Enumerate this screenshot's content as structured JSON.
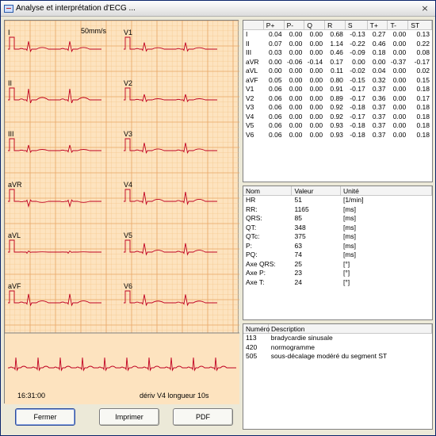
{
  "window": {
    "title": "Analyse et interprétation d'ECG ...",
    "close_glyph": "×"
  },
  "ecg": {
    "speed": "50mm/s",
    "leads_left": [
      "I",
      "II",
      "III",
      "aVR",
      "aVL",
      "aVF"
    ],
    "leads_right": [
      "V1",
      "V2",
      "V3",
      "V4",
      "V5",
      "V6"
    ],
    "rhythm_time": "16:31:00",
    "rhythm_label": "dériv V4  longueur 10s"
  },
  "params": {
    "headers": [
      "",
      "P+",
      "P-",
      "Q",
      "R",
      "S",
      "T+",
      "T-",
      "ST"
    ],
    "rows": [
      [
        "I",
        "0.04",
        "0.00",
        "0.00",
        "0.68",
        "-0.13",
        "0.27",
        "0.00",
        "0.13"
      ],
      [
        "II",
        "0.07",
        "0.00",
        "0.00",
        "1.14",
        "-0.22",
        "0.46",
        "0.00",
        "0.22"
      ],
      [
        "III",
        "0.03",
        "0.00",
        "0.00",
        "0.46",
        "-0.09",
        "0.18",
        "0.00",
        "0.08"
      ],
      [
        "aVR",
        "0.00",
        "-0.06",
        "-0.14",
        "0.17",
        "0.00",
        "0.00",
        "-0.37",
        "-0.17"
      ],
      [
        "aVL",
        "0.00",
        "0.00",
        "0.00",
        "0.11",
        "-0.02",
        "0.04",
        "0.00",
        "0.02"
      ],
      [
        "aVF",
        "0.05",
        "0.00",
        "0.00",
        "0.80",
        "-0.15",
        "0.32",
        "0.00",
        "0.15"
      ],
      [
        "V1",
        "0.06",
        "0.00",
        "0.00",
        "0.91",
        "-0.17",
        "0.37",
        "0.00",
        "0.18"
      ],
      [
        "V2",
        "0.06",
        "0.00",
        "0.00",
        "0.89",
        "-0.17",
        "0.36",
        "0.00",
        "0.17"
      ],
      [
        "V3",
        "0.06",
        "0.00",
        "0.00",
        "0.92",
        "-0.18",
        "0.37",
        "0.00",
        "0.18"
      ],
      [
        "V4",
        "0.06",
        "0.00",
        "0.00",
        "0.92",
        "-0.17",
        "0.37",
        "0.00",
        "0.18"
      ],
      [
        "V5",
        "0.06",
        "0.00",
        "0.00",
        "0.93",
        "-0.18",
        "0.37",
        "0.00",
        "0.18"
      ],
      [
        "V6",
        "0.06",
        "0.00",
        "0.00",
        "0.93",
        "-0.18",
        "0.37",
        "0.00",
        "0.18"
      ]
    ]
  },
  "measures": {
    "headers": [
      "Nom",
      "Valeur",
      "Unité"
    ],
    "rows": [
      [
        "HR",
        "51",
        "[1/min]"
      ],
      [
        "RR:",
        "1165",
        "[ms]"
      ],
      [
        "QRS:",
        "85",
        "[ms]"
      ],
      [
        "QT:",
        "348",
        "[ms]"
      ],
      [
        "QTc:",
        "375",
        "[ms]"
      ],
      [
        "P:",
        "63",
        "[ms]"
      ],
      [
        "PQ:",
        "74",
        "[ms]"
      ],
      [
        "Axe QRS:",
        "25",
        "[°]"
      ],
      [
        "Axe P:",
        "23",
        "[°]"
      ],
      [
        "Axe T:",
        "24",
        "[°]"
      ]
    ]
  },
  "diagnosis": {
    "headers": [
      "Numéro",
      "Description"
    ],
    "rows": [
      [
        "113",
        "bradycardie sinusale"
      ],
      [
        "420",
        "normogramme"
      ],
      [
        "505",
        "sous-décalage modéré du segment ST"
      ]
    ]
  },
  "buttons": {
    "close": "Fermer",
    "print": "Imprimer",
    "pdf": "PDF"
  }
}
